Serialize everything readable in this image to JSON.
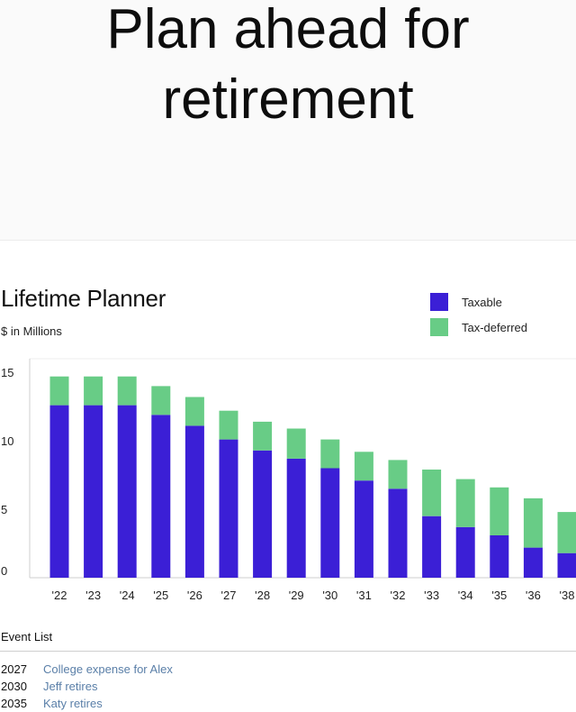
{
  "hero": {
    "title_line1": "Plan ahead for",
    "title_line2": "retirement"
  },
  "chart_data": {
    "type": "bar",
    "stacked": true,
    "title": "Lifetime Planner",
    "subtitle": "$ in Millions",
    "categories": [
      "'22",
      "'23",
      "'24",
      "'25",
      "'26",
      "'27",
      "'28",
      "'29",
      "'30",
      "'31",
      "'32",
      "'33",
      "'34",
      "'35",
      "'36",
      "'38"
    ],
    "series": [
      {
        "name": "Taxable",
        "color": "#3b1fd6",
        "values": [
          12.6,
          12.6,
          12.6,
          11.9,
          11.1,
          10.1,
          9.3,
          8.7,
          8.0,
          7.1,
          6.5,
          4.5,
          3.7,
          3.1,
          2.2,
          1.8
        ]
      },
      {
        "name": "Tax-deferred",
        "color": "#68cc86",
        "values": [
          2.1,
          2.1,
          2.1,
          2.1,
          2.1,
          2.1,
          2.1,
          2.2,
          2.1,
          2.1,
          2.1,
          3.4,
          3.5,
          3.5,
          3.6,
          3.0
        ]
      }
    ],
    "yticks": [
      0,
      5,
      10,
      15
    ],
    "ylim": [
      0,
      16
    ],
    "grid": true,
    "legend_position": "top-right"
  },
  "events": {
    "title": "Event List",
    "items": [
      {
        "year": "2027",
        "label": "College expense for Alex"
      },
      {
        "year": "2030",
        "label": "Jeff retires"
      },
      {
        "year": "2035",
        "label": "Katy retires"
      }
    ]
  }
}
